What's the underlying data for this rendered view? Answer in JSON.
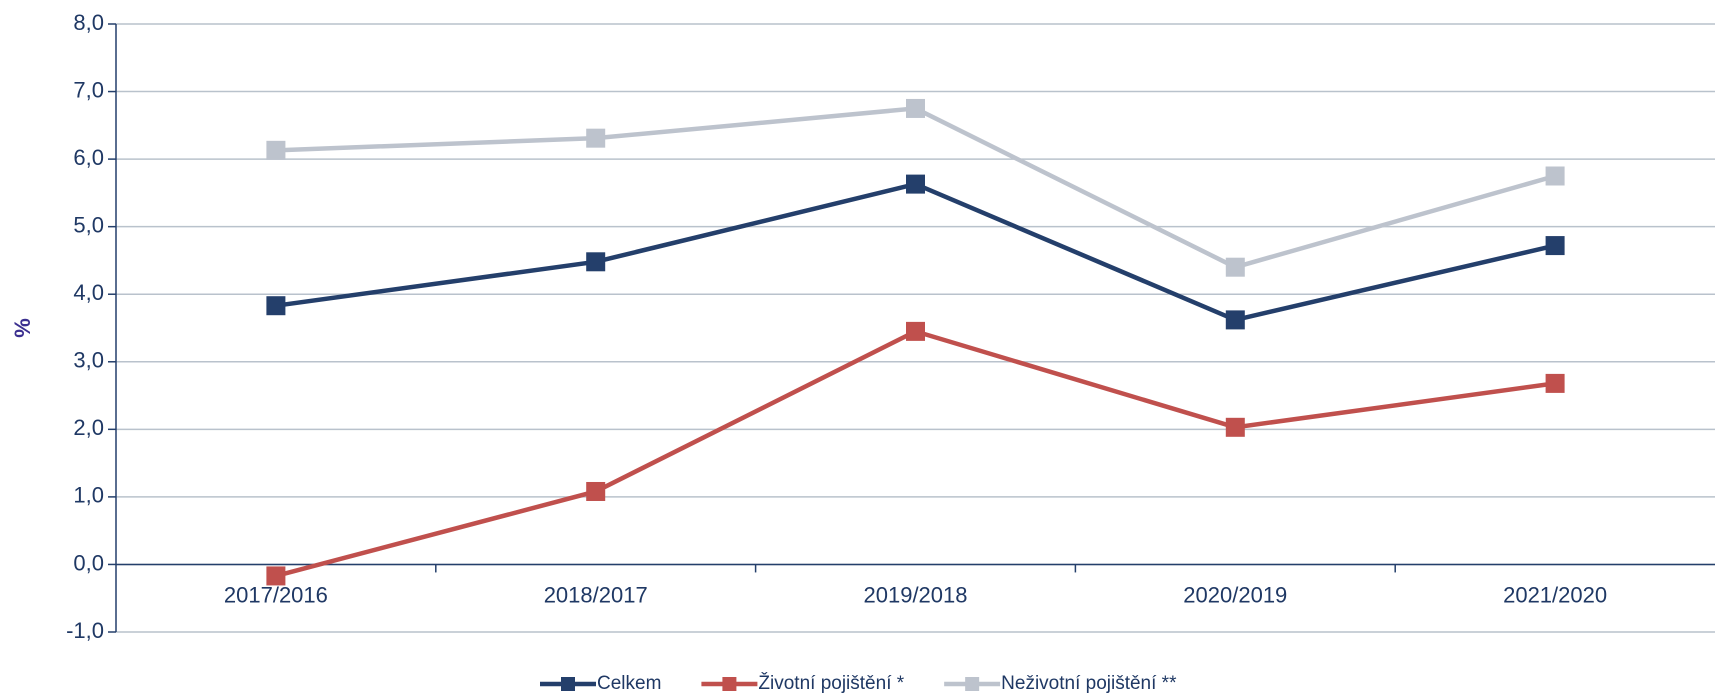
{
  "chart_data": {
    "type": "line",
    "y_label": "%",
    "categories": [
      "2017/2016",
      "2018/2017",
      "2019/2018",
      "2020/2019",
      "2021/2020"
    ],
    "series": [
      {
        "name": "Celkem",
        "color": "#243f6b",
        "values": [
          3.83,
          4.48,
          5.63,
          3.62,
          4.72
        ]
      },
      {
        "name": "Životní pojištění *",
        "color": "#c0504d",
        "values": [
          -0.17,
          1.08,
          3.45,
          2.03,
          2.68
        ]
      },
      {
        "name": "Neživotní pojištění **",
        "color": "#bdc3cd",
        "values": [
          6.13,
          6.31,
          6.75,
          4.4,
          5.75
        ]
      }
    ],
    "ylim": [
      -1,
      8
    ],
    "yticks": [
      {
        "value": -1,
        "label": "-1,0"
      },
      {
        "value": 0,
        "label": "0,0"
      },
      {
        "value": 1,
        "label": "1,0"
      },
      {
        "value": 2,
        "label": "2,0"
      },
      {
        "value": 3,
        "label": "3,0"
      },
      {
        "value": 4,
        "label": "4,0"
      },
      {
        "value": 5,
        "label": "5,0"
      },
      {
        "value": 6,
        "label": "6,0"
      },
      {
        "value": 7,
        "label": "7,0"
      },
      {
        "value": 8,
        "label": "8,0"
      }
    ],
    "grid": true,
    "legend": "bottom"
  }
}
